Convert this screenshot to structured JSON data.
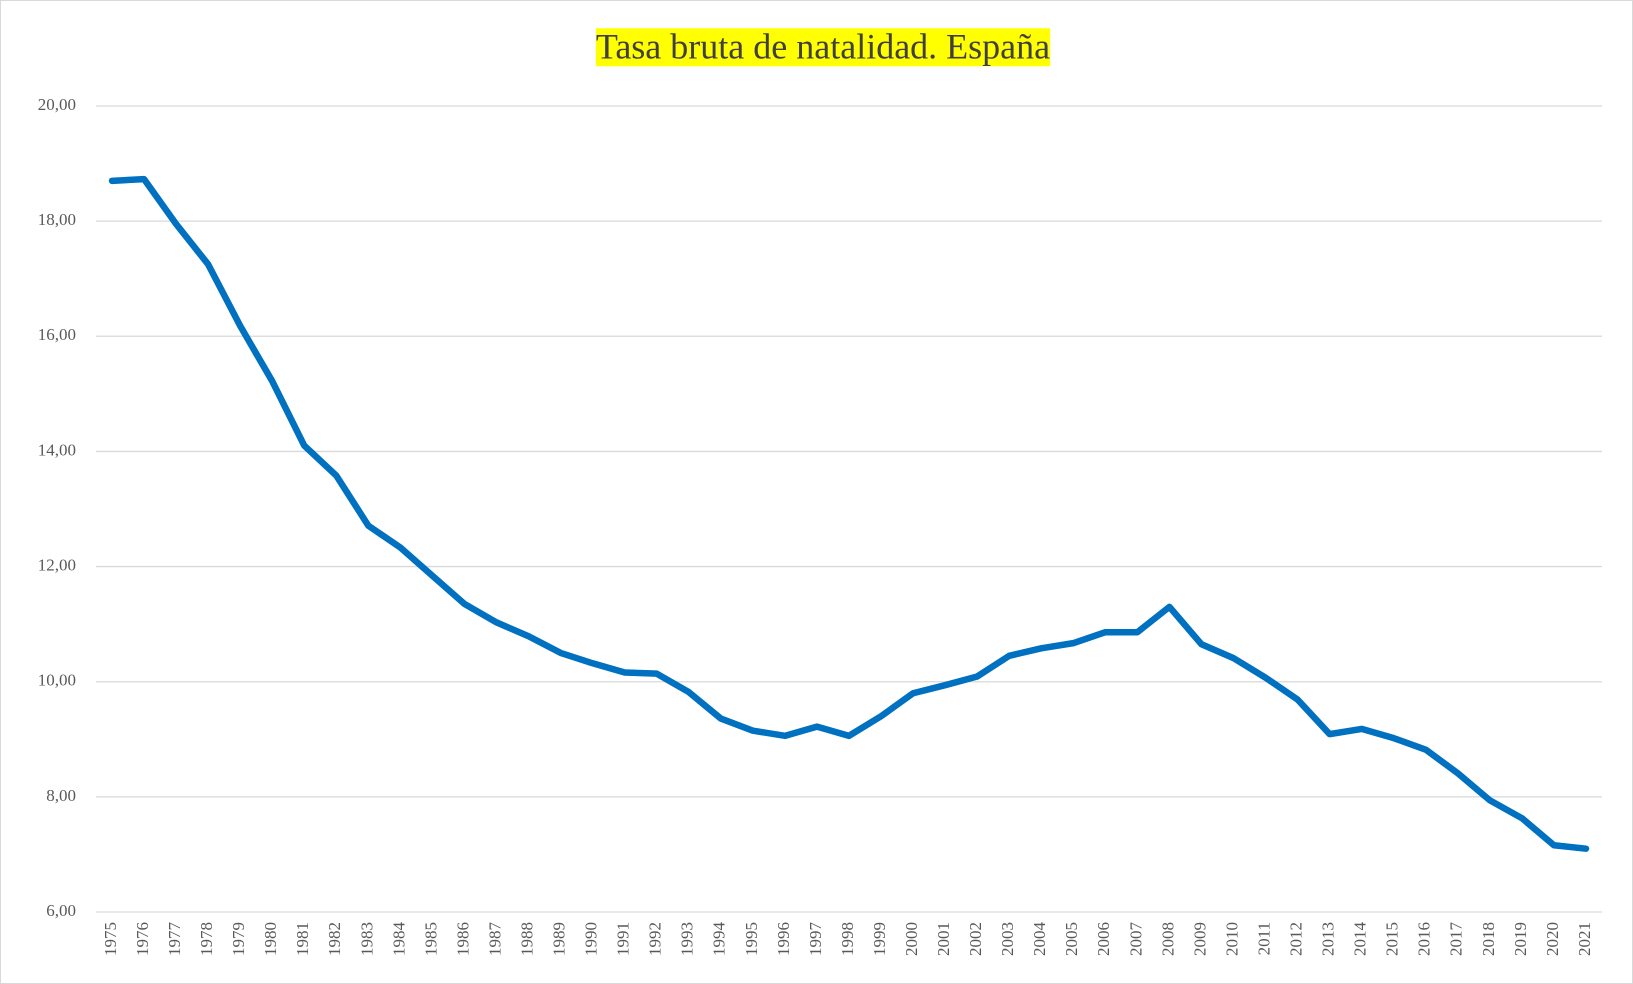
{
  "chart_data": {
    "type": "line",
    "title": "Tasa bruta de natalidad. España",
    "categories": [
      "1975",
      "1976",
      "1977",
      "1978",
      "1979",
      "1980",
      "1981",
      "1982",
      "1983",
      "1984",
      "1985",
      "1986",
      "1987",
      "1988",
      "1989",
      "1990",
      "1991",
      "1992",
      "1993",
      "1994",
      "1995",
      "1996",
      "1997",
      "1998",
      "1999",
      "2000",
      "2001",
      "2002",
      "2003",
      "2004",
      "2005",
      "2006",
      "2007",
      "2008",
      "2009",
      "2010",
      "2011",
      "2012",
      "2013",
      "2014",
      "2015",
      "2016",
      "2017",
      "2018",
      "2019",
      "2020",
      "2021"
    ],
    "series": [
      {
        "color": "#0070c0",
        "values": [
          18.7,
          18.73,
          17.95,
          17.25,
          16.18,
          15.22,
          14.1,
          13.58,
          12.71,
          12.33,
          11.84,
          11.35,
          11.03,
          10.79,
          10.5,
          10.32,
          10.16,
          10.14,
          9.82,
          9.36,
          9.15,
          9.06,
          9.22,
          9.06,
          9.4,
          9.8,
          9.94,
          10.09,
          10.45,
          10.58,
          10.67,
          10.86,
          10.86,
          11.3,
          10.65,
          10.41,
          10.07,
          9.69,
          9.09,
          9.18,
          9.02,
          8.82,
          8.41,
          7.94,
          7.63,
          7.16,
          7.1
        ]
      }
    ],
    "ylim": [
      6,
      20
    ],
    "yticks": [
      {
        "value": 6,
        "label": "6,00"
      },
      {
        "value": 8,
        "label": "8,00"
      },
      {
        "value": 10,
        "label": "10,00"
      },
      {
        "value": 12,
        "label": "12,00"
      },
      {
        "value": 14,
        "label": "14,00"
      },
      {
        "value": 16,
        "label": "16,00"
      },
      {
        "value": 18,
        "label": "18,00"
      },
      {
        "value": 20,
        "label": "20,00"
      }
    ],
    "grid": true
  }
}
